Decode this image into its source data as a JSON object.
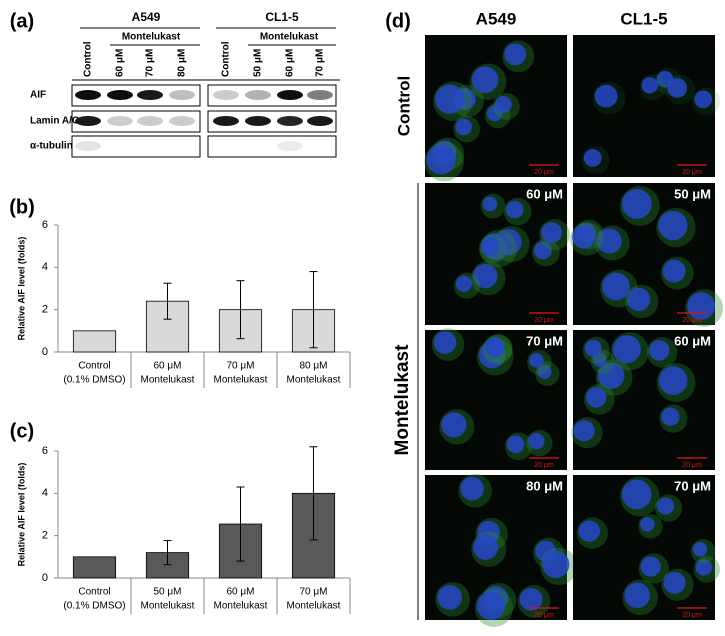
{
  "panel_labels": [
    "(a)",
    "(b)",
    "(c)",
    "(d)"
  ],
  "blot": {
    "groups": [
      {
        "name": "A549",
        "treatment": "Montelukast",
        "lanes": [
          "Control",
          "60 μM",
          "70 μM",
          "80 μM"
        ]
      },
      {
        "name": "CL1-5",
        "treatment": "Montelukast",
        "lanes": [
          "Control",
          "50 μM",
          "60 μM",
          "70 μM"
        ]
      }
    ],
    "rows": [
      "AIF",
      "Lamin A/C",
      "α-tubulin"
    ]
  },
  "chart_data": [
    {
      "type": "bar",
      "y_label": "Relative AIF level (folds)",
      "categories": [
        [
          "Control",
          "(0.1% DMSO)"
        ],
        [
          "60 μM",
          "Montelukast"
        ],
        [
          "70 μM",
          "Montelukast"
        ],
        [
          "80 μM",
          "Montelukast"
        ]
      ],
      "values": [
        1,
        2.4,
        2.0,
        2.0
      ],
      "errors": [
        null,
        0.85,
        1.37,
        1.8
      ],
      "color": "#d9d9d9",
      "ylim": [
        0,
        6
      ],
      "yticks": [
        0,
        2,
        4,
        6
      ]
    },
    {
      "type": "bar",
      "y_label": "Relative AIF level (folds)",
      "categories": [
        [
          "Control",
          "(0.1% DMSO)"
        ],
        [
          "50 μM",
          "Montelukast"
        ],
        [
          "60 μM",
          "Montelukast"
        ],
        [
          "70 μM",
          "Montelukast"
        ]
      ],
      "values": [
        1,
        1.2,
        2.55,
        4.0
      ],
      "errors": [
        null,
        0.57,
        1.75,
        2.2
      ],
      "color": "#595959",
      "ylim": [
        0,
        6
      ],
      "yticks": [
        0,
        2,
        4,
        6
      ]
    }
  ],
  "micrograph": {
    "columns": [
      "A549",
      "CL1-5"
    ],
    "row_groups": [
      "Control",
      "Montelukast"
    ],
    "concentrations": [
      [
        "60 μM",
        "50 μM"
      ],
      [
        "70 μM",
        "60 μM"
      ],
      [
        "80 μM",
        "70 μM"
      ]
    ],
    "scale_bar": "20 μm"
  }
}
